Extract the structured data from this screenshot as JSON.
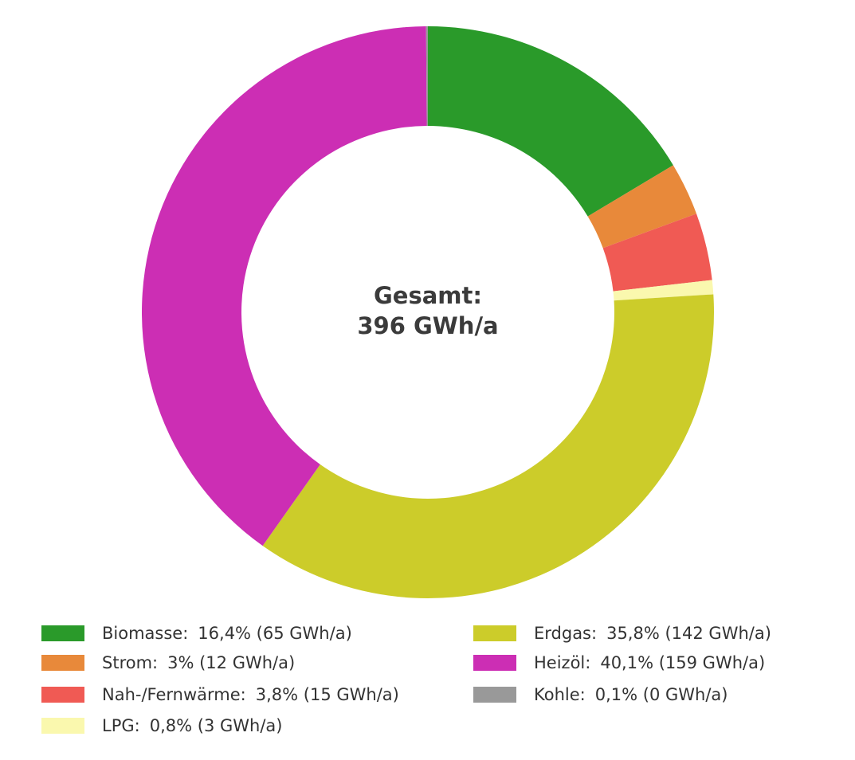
{
  "chart_data": {
    "type": "pie",
    "variant": "donut",
    "center_label": {
      "line1": "Gesamt:",
      "line2": "396 GWh/a"
    },
    "slices": [
      {
        "name": "Biomasse",
        "percent": 16.4,
        "value": 65,
        "color": "#2a9a2a",
        "legend_label": "Biomasse:",
        "legend_value": "16,4% (65 GWh/a)"
      },
      {
        "name": "Strom",
        "percent": 3.0,
        "value": 12,
        "color": "#e8893a",
        "legend_label": "Strom:",
        "legend_value": "3% (12 GWh/a)"
      },
      {
        "name": "Nah-/Fernwärme",
        "percent": 3.8,
        "value": 15,
        "color": "#f05a54",
        "legend_label": "Nah-/Fernwärme:",
        "legend_value": "3,8% (15 GWh/a)"
      },
      {
        "name": "LPG",
        "percent": 0.8,
        "value": 3,
        "color": "#faf8ae",
        "legend_label": "LPG:",
        "legend_value": "0,8% (3 GWh/a)"
      },
      {
        "name": "Erdgas",
        "percent": 35.8,
        "value": 142,
        "color": "#cccc2a",
        "legend_label": "Erdgas:",
        "legend_value": "35,8% (142 GWh/a)"
      },
      {
        "name": "Heizöl",
        "percent": 40.1,
        "value": 159,
        "color": "#cc2eb4",
        "legend_label": "Heizöl:",
        "legend_value": "40,1% (159 GWh/a)"
      },
      {
        "name": "Kohle",
        "percent": 0.1,
        "value": 0,
        "color": "#999999",
        "legend_label": "Kohle:",
        "legend_value": "0,1% (0 GWh/a)"
      }
    ],
    "legend_placement": "bottom"
  }
}
